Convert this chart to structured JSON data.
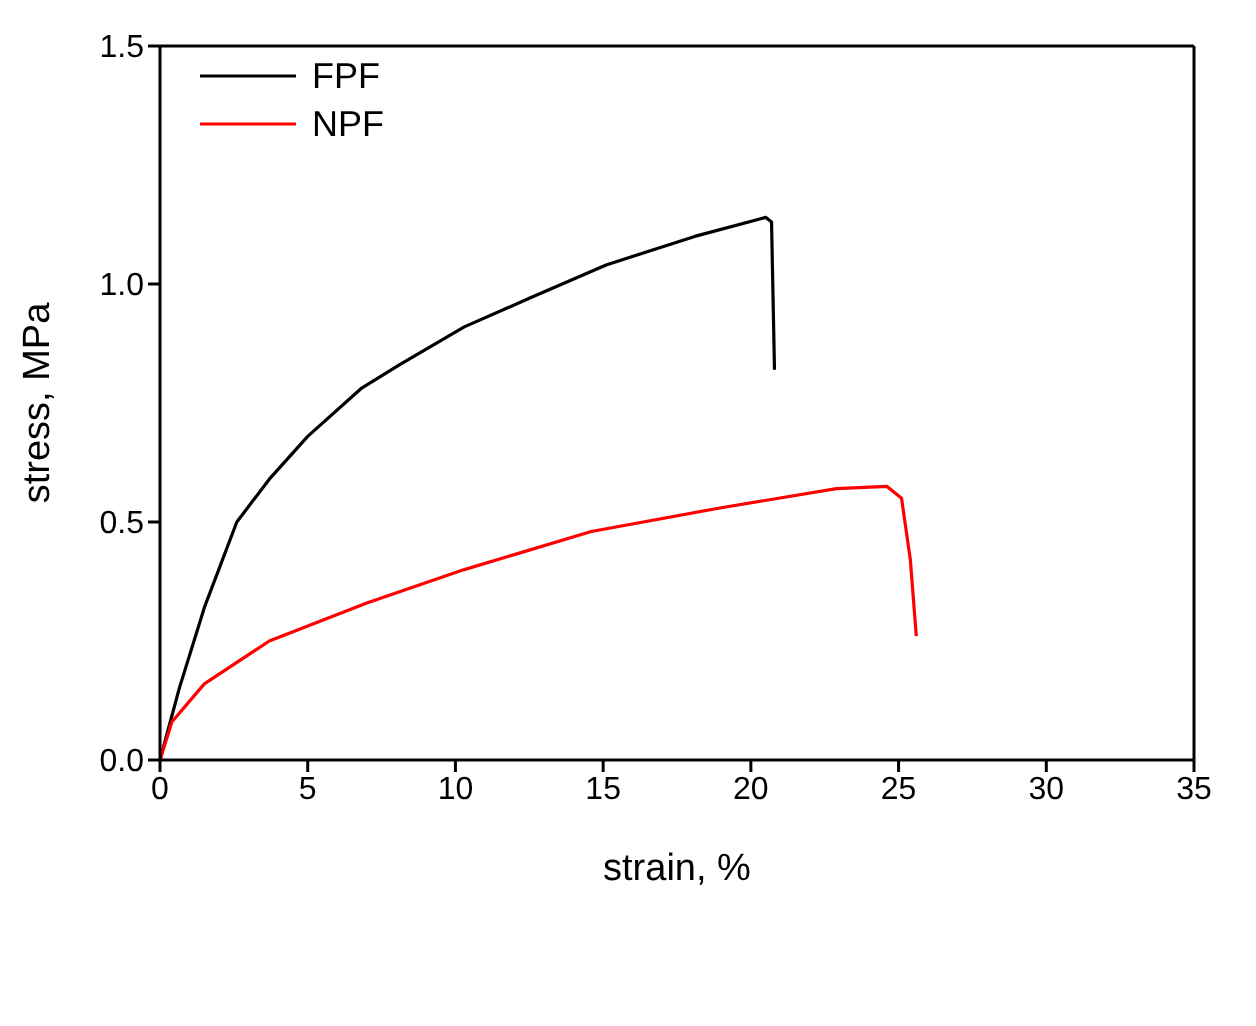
{
  "chart_data": {
    "type": "line",
    "xlabel": "strain, %",
    "ylabel": "stress, MPa",
    "xlim": [
      0,
      35
    ],
    "xticks": [
      0,
      5,
      10,
      15,
      20,
      25,
      30,
      35
    ],
    "ylim": [
      0,
      1.5
    ],
    "yticks": [
      {
        "value": 0,
        "label": "0.0"
      },
      0.5,
      {
        "value": 1,
        "label": "1.0"
      },
      1.5
    ],
    "legend": "top left",
    "marker": "none",
    "line_style": "solid",
    "series": [
      {
        "name": "FPF",
        "color": "#000000",
        "x": [
          0,
          0.65,
          1.5,
          2.6,
          3.7,
          5.0,
          6.8,
          8.1,
          10.3,
          12.5,
          15.1,
          18.1,
          20.5,
          20.7,
          20.8
        ],
        "values": [
          0,
          0.15,
          0.32,
          0.5,
          0.59,
          0.68,
          0.78,
          0.83,
          0.91,
          0.97,
          1.04,
          1.1,
          1.14,
          1.13,
          0.82
        ]
      },
      {
        "name": "NPF",
        "color": "#ff0000",
        "x": [
          0,
          0.4,
          1.5,
          3.7,
          7.0,
          10.3,
          14.6,
          19.0,
          22.9,
          24.6,
          25.1,
          25.4,
          25.6
        ],
        "values": [
          0,
          0.08,
          0.16,
          0.25,
          0.33,
          0.4,
          0.48,
          0.53,
          0.57,
          0.575,
          0.55,
          0.42,
          0.26
        ]
      }
    ]
  }
}
